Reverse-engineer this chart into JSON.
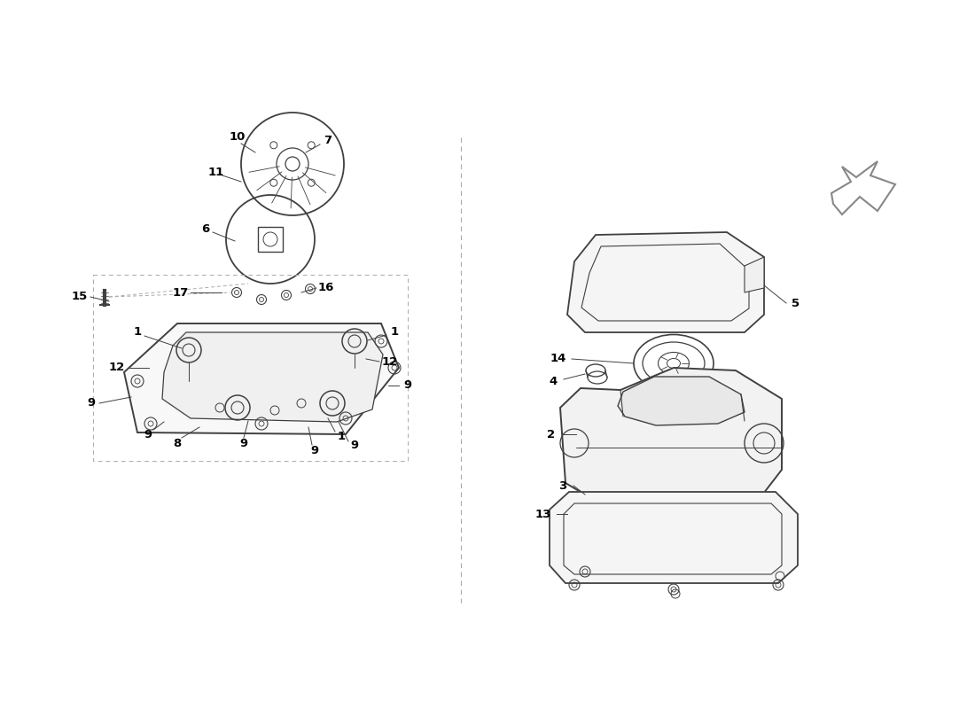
{
  "bg_color": "#ffffff",
  "line_color": "#404040",
  "label_color": "#000000",
  "dashed_color": "#aaaaaa",
  "figsize": [
    11.0,
    8.0
  ],
  "dpi": 100
}
